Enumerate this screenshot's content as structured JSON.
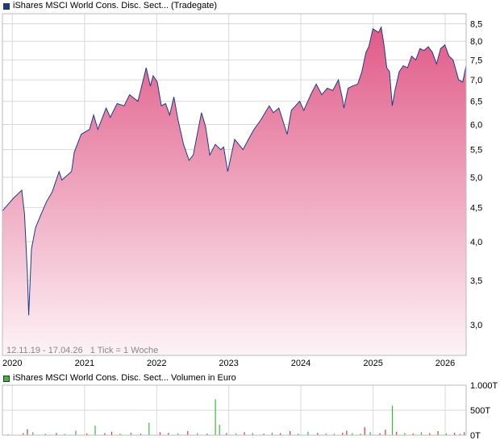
{
  "legend_price": "iShares MSCI World Cons. Disc. Sect... (Tradegate)",
  "legend_volume": "iShares MSCI World Cons. Disc. Sect... Volumen in Euro",
  "period_note": "12.11.19 - 17.04.26   1 Tick = 1 Woche",
  "colors": {
    "line": "#1e3a8a",
    "fill_top": "#e05a87",
    "fill_bottom": "#fdf3f7",
    "volume_green": "#3fb53f",
    "volume_red": "#d23c3c",
    "grid": "#d9d9d9"
  },
  "chart_data": [
    {
      "type": "area",
      "title": "",
      "ylabel": "",
      "scale": "log",
      "ylim": [
        2.7,
        8.8
      ],
      "xlim": [
        "2019-11-12",
        "2026-04-17"
      ],
      "grid": true,
      "y_ticks": [
        {
          "value": 3.0,
          "label": "3,0"
        },
        {
          "value": 3.5,
          "label": "3,5"
        },
        {
          "value": 4.0,
          "label": "4,0"
        },
        {
          "value": 4.5,
          "label": "4,5"
        },
        {
          "value": 5.0,
          "label": "5,0"
        },
        {
          "value": 5.5,
          "label": "5,5"
        },
        {
          "value": 6.0,
          "label": "6,0"
        },
        {
          "value": 6.5,
          "label": "6,5"
        },
        {
          "value": 7.0,
          "label": "7,0"
        },
        {
          "value": 7.5,
          "label": "7,5"
        },
        {
          "value": 8.0,
          "label": "8,0"
        },
        {
          "value": 8.5,
          "label": "8,5"
        }
      ],
      "x_ticks": [
        {
          "date": "2020-01-01",
          "label": "2020"
        },
        {
          "date": "2021-01-01",
          "label": "2021"
        },
        {
          "date": "2022-01-01",
          "label": "2022"
        },
        {
          "date": "2023-01-01",
          "label": "2023"
        },
        {
          "date": "2024-01-01",
          "label": "2024"
        },
        {
          "date": "2025-01-01",
          "label": "2025"
        },
        {
          "date": "2026-01-01",
          "label": "2026"
        }
      ],
      "series": [
        {
          "points": [
            [
              "2019-11-12",
              4.45
            ],
            [
              "2019-12-10",
              4.55
            ],
            [
              "2020-01-07",
              4.65
            ],
            [
              "2020-02-18",
              4.78
            ],
            [
              "2020-03-03",
              4.4
            ],
            [
              "2020-03-17",
              3.6
            ],
            [
              "2020-03-24",
              3.1
            ],
            [
              "2020-04-07",
              3.9
            ],
            [
              "2020-04-28",
              4.2
            ],
            [
              "2020-05-26",
              4.4
            ],
            [
              "2020-06-23",
              4.6
            ],
            [
              "2020-07-21",
              4.75
            ],
            [
              "2020-08-25",
              5.1
            ],
            [
              "2020-09-08",
              4.95
            ],
            [
              "2020-10-27",
              5.1
            ],
            [
              "2020-11-10",
              5.45
            ],
            [
              "2020-12-15",
              5.8
            ],
            [
              "2021-01-26",
              5.9
            ],
            [
              "2021-02-16",
              6.2
            ],
            [
              "2021-03-09",
              5.9
            ],
            [
              "2021-04-20",
              6.35
            ],
            [
              "2021-05-11",
              6.15
            ],
            [
              "2021-06-15",
              6.45
            ],
            [
              "2021-07-20",
              6.4
            ],
            [
              "2021-08-17",
              6.65
            ],
            [
              "2021-09-28",
              6.5
            ],
            [
              "2021-11-09",
              7.3
            ],
            [
              "2021-11-30",
              6.85
            ],
            [
              "2021-12-14",
              7.1
            ],
            [
              "2022-01-04",
              6.95
            ],
            [
              "2022-01-25",
              6.4
            ],
            [
              "2022-02-15",
              6.45
            ],
            [
              "2022-03-08",
              6.2
            ],
            [
              "2022-03-29",
              6.6
            ],
            [
              "2022-04-19",
              6.1
            ],
            [
              "2022-05-17",
              5.6
            ],
            [
              "2022-06-14",
              5.3
            ],
            [
              "2022-07-05",
              5.4
            ],
            [
              "2022-08-16",
              6.25
            ],
            [
              "2022-09-06",
              5.95
            ],
            [
              "2022-09-27",
              5.4
            ],
            [
              "2022-10-25",
              5.6
            ],
            [
              "2022-11-22",
              5.5
            ],
            [
              "2022-12-06",
              5.55
            ],
            [
              "2022-12-27",
              5.1
            ],
            [
              "2023-01-31",
              5.7
            ],
            [
              "2023-02-21",
              5.6
            ],
            [
              "2023-03-14",
              5.5
            ],
            [
              "2023-04-11",
              5.7
            ],
            [
              "2023-05-09",
              5.9
            ],
            [
              "2023-06-13",
              6.1
            ],
            [
              "2023-07-25",
              6.4
            ],
            [
              "2023-08-15",
              6.25
            ],
            [
              "2023-09-12",
              6.35
            ],
            [
              "2023-10-24",
              5.8
            ],
            [
              "2023-11-14",
              6.3
            ],
            [
              "2023-12-26",
              6.5
            ],
            [
              "2024-01-16",
              6.3
            ],
            [
              "2024-02-20",
              6.65
            ],
            [
              "2024-03-19",
              6.9
            ],
            [
              "2024-04-16",
              6.65
            ],
            [
              "2024-05-14",
              6.8
            ],
            [
              "2024-06-11",
              6.75
            ],
            [
              "2024-07-09",
              7.0
            ],
            [
              "2024-07-30",
              6.55
            ],
            [
              "2024-08-06",
              6.35
            ],
            [
              "2024-08-27",
              6.8
            ],
            [
              "2024-09-17",
              6.85
            ],
            [
              "2024-10-15",
              6.9
            ],
            [
              "2024-11-05",
              7.2
            ],
            [
              "2024-11-26",
              7.7
            ],
            [
              "2024-12-10",
              7.85
            ],
            [
              "2024-12-31",
              8.35
            ],
            [
              "2025-01-28",
              8.25
            ],
            [
              "2025-02-11",
              8.4
            ],
            [
              "2025-02-25",
              7.9
            ],
            [
              "2025-03-11",
              7.3
            ],
            [
              "2025-03-25",
              7.2
            ],
            [
              "2025-04-08",
              6.4
            ],
            [
              "2025-04-22",
              6.75
            ],
            [
              "2025-05-13",
              7.2
            ],
            [
              "2025-06-03",
              7.35
            ],
            [
              "2025-06-24",
              7.3
            ],
            [
              "2025-07-15",
              7.6
            ],
            [
              "2025-08-05",
              7.5
            ],
            [
              "2025-08-26",
              7.8
            ],
            [
              "2025-09-16",
              7.75
            ],
            [
              "2025-10-07",
              7.85
            ],
            [
              "2025-10-28",
              7.7
            ],
            [
              "2025-11-18",
              7.4
            ],
            [
              "2025-12-09",
              7.8
            ],
            [
              "2025-12-30",
              7.9
            ],
            [
              "2026-01-20",
              7.6
            ],
            [
              "2026-02-10",
              7.5
            ],
            [
              "2026-03-10",
              7.0
            ],
            [
              "2026-03-31",
              6.95
            ],
            [
              "2026-04-17",
              7.35
            ]
          ]
        }
      ]
    },
    {
      "type": "bar",
      "title": "",
      "ylabel": "",
      "ylim": [
        0,
        1000
      ],
      "xlim": [
        "2019-11-12",
        "2026-04-17"
      ],
      "y_ticks": [
        {
          "value": 0,
          "label": "0T"
        },
        {
          "value": 500,
          "label": "500T"
        },
        {
          "value": 1000,
          "label": "1.000T"
        }
      ],
      "x_ticks": [],
      "series": [
        {
          "points": [
            [
              "2019-12-10",
              20,
              "g"
            ],
            [
              "2020-02-25",
              40,
              "r"
            ],
            [
              "2020-03-17",
              120,
              "r"
            ],
            [
              "2020-04-14",
              60,
              "g"
            ],
            [
              "2020-06-16",
              30,
              "g"
            ],
            [
              "2020-08-11",
              45,
              "r"
            ],
            [
              "2020-09-22",
              25,
              "g"
            ],
            [
              "2020-11-17",
              90,
              "g"
            ],
            [
              "2021-01-12",
              35,
              "r"
            ],
            [
              "2021-02-23",
              190,
              "g"
            ],
            [
              "2021-04-13",
              40,
              "r"
            ],
            [
              "2021-05-18",
              70,
              "r"
            ],
            [
              "2021-06-29",
              30,
              "g"
            ],
            [
              "2021-08-24",
              50,
              "g"
            ],
            [
              "2021-10-12",
              30,
              "r"
            ],
            [
              "2021-11-23",
              250,
              "g"
            ],
            [
              "2022-01-18",
              60,
              "r"
            ],
            [
              "2022-03-01",
              45,
              "r"
            ],
            [
              "2022-04-19",
              35,
              "g"
            ],
            [
              "2022-06-07",
              80,
              "r"
            ],
            [
              "2022-07-26",
              40,
              "g"
            ],
            [
              "2022-09-13",
              30,
              "r"
            ],
            [
              "2022-10-25",
              720,
              "g"
            ],
            [
              "2022-11-15",
              210,
              "g"
            ],
            [
              "2022-12-20",
              40,
              "r"
            ],
            [
              "2023-02-07",
              35,
              "g"
            ],
            [
              "2023-03-21",
              60,
              "r"
            ],
            [
              "2023-05-02",
              45,
              "g"
            ],
            [
              "2023-06-27",
              30,
              "r"
            ],
            [
              "2023-08-08",
              50,
              "g"
            ],
            [
              "2023-09-19",
              40,
              "r"
            ],
            [
              "2023-11-07",
              80,
              "r"
            ],
            [
              "2023-12-19",
              30,
              "g"
            ],
            [
              "2024-02-06",
              70,
              "g"
            ],
            [
              "2024-03-26",
              45,
              "r"
            ],
            [
              "2024-05-07",
              35,
              "g"
            ],
            [
              "2024-06-18",
              25,
              "r"
            ],
            [
              "2024-07-30",
              50,
              "r"
            ],
            [
              "2024-08-20",
              90,
              "r"
            ],
            [
              "2024-09-17",
              40,
              "g"
            ],
            [
              "2024-10-29",
              30,
              "g"
            ],
            [
              "2024-11-19",
              160,
              "r"
            ],
            [
              "2024-12-17",
              60,
              "g"
            ],
            [
              "2025-02-04",
              40,
              "r"
            ],
            [
              "2025-03-04",
              110,
              "r"
            ],
            [
              "2025-04-08",
              590,
              "g"
            ],
            [
              "2025-04-29",
              70,
              "r"
            ],
            [
              "2025-06-10",
              45,
              "g"
            ],
            [
              "2025-07-22",
              35,
              "r"
            ],
            [
              "2025-09-02",
              60,
              "g"
            ],
            [
              "2025-10-14",
              40,
              "r"
            ],
            [
              "2025-11-25",
              80,
              "r"
            ],
            [
              "2026-01-06",
              35,
              "g"
            ],
            [
              "2026-02-17",
              50,
              "r"
            ],
            [
              "2026-03-17",
              30,
              "g"
            ],
            [
              "2026-04-07",
              60,
              "r"
            ]
          ]
        }
      ]
    }
  ]
}
